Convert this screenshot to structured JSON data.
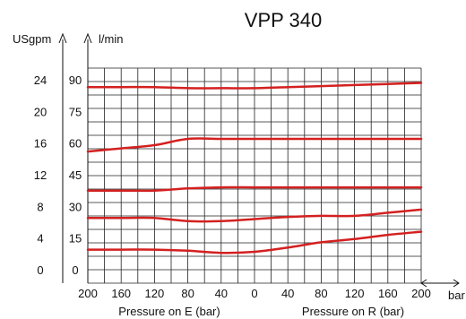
{
  "chart_data": {
    "type": "line",
    "title": "VPP 340",
    "left_axis_label": "USgpm",
    "right_axis_label": "l/min",
    "usgpm_ticks": [
      "24",
      "20",
      "16",
      "12",
      "8",
      "4",
      "0"
    ],
    "lmin_ticks": [
      "90",
      "75",
      "60",
      "45",
      "30",
      "15",
      "0"
    ],
    "x_tick_labels": [
      "200",
      "160",
      "120",
      "80",
      "40",
      "0",
      "40",
      "80",
      "120",
      "160",
      "200"
    ],
    "x_unit": "bar",
    "xlabel_left": "Pressure on E (bar)",
    "xlabel_right": "Pressure on R (bar)",
    "x_range": [
      -200,
      200
    ],
    "y_range_lmin": [
      0,
      100
    ],
    "grid": true,
    "line_color": "#d42020",
    "series": [
      {
        "x": [
          -200,
          -160,
          -120,
          -80,
          -40,
          0,
          40,
          80,
          120,
          160,
          200
        ],
        "values": [
          9.5,
          9.5,
          9.5,
          9.0,
          8.0,
          8.5,
          10.5,
          13.0,
          14.5,
          16.5,
          18.0
        ]
      },
      {
        "x": [
          -200,
          -160,
          -120,
          -80,
          -40,
          0,
          40,
          80,
          120,
          160,
          200
        ],
        "values": [
          24.5,
          24.5,
          24.5,
          23.0,
          23.0,
          24.0,
          25.0,
          25.5,
          25.5,
          27.0,
          28.5
        ]
      },
      {
        "x": [
          -200,
          -160,
          -120,
          -80,
          -40,
          0,
          40,
          80,
          120,
          160,
          200
        ],
        "values": [
          37.5,
          37.5,
          37.5,
          38.5,
          39.0,
          39.0,
          39.0,
          39.0,
          39.0,
          39.0,
          39.0
        ]
      },
      {
        "x": [
          -200,
          -160,
          -120,
          -80,
          -40,
          0,
          40,
          80,
          120,
          160,
          200
        ],
        "values": [
          56.0,
          57.5,
          59.0,
          62.0,
          62.0,
          62.0,
          62.0,
          62.0,
          62.0,
          62.0,
          62.0
        ]
      },
      {
        "x": [
          -200,
          -160,
          -120,
          -80,
          -40,
          0,
          40,
          80,
          120,
          160,
          200
        ],
        "values": [
          86.5,
          86.5,
          86.5,
          86.0,
          86.0,
          86.0,
          86.5,
          87.0,
          87.5,
          88.0,
          88.5
        ]
      }
    ]
  }
}
